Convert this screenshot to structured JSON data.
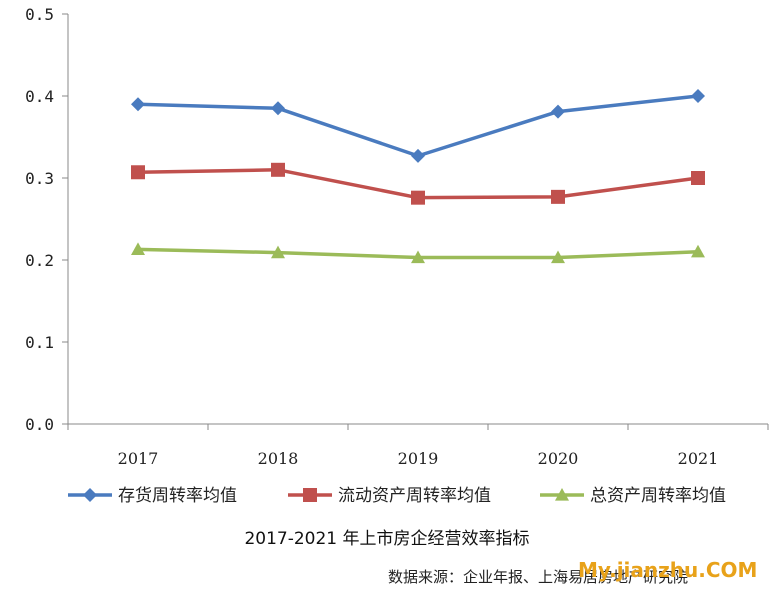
{
  "chart_data": {
    "type": "line",
    "title": "2017-2021 年上市房企经营效率指标",
    "categories": [
      "2017",
      "2018",
      "2019",
      "2020",
      "2021"
    ],
    "ylim": [
      0,
      0.5
    ],
    "yticks": [
      "0.0",
      "0.1",
      "0.2",
      "0.3",
      "0.4",
      "0.5"
    ],
    "grid": false,
    "legend_position": "bottom",
    "series": [
      {
        "name": "存货周转率均值",
        "color": "#4a7bbf",
        "marker": "diamond",
        "values": [
          0.39,
          0.385,
          0.327,
          0.381,
          0.4
        ]
      },
      {
        "name": "流动资产周转率均值",
        "color": "#c0504d",
        "marker": "square",
        "values": [
          0.307,
          0.31,
          0.276,
          0.277,
          0.3
        ]
      },
      {
        "name": "总资产周转率均值",
        "color": "#9bbb59",
        "marker": "triangle",
        "values": [
          0.213,
          0.209,
          0.203,
          0.203,
          0.21
        ]
      }
    ]
  },
  "source_text": "数据来源：企业年报、上海易居房地产研究院",
  "watermark": "My.jianzhu.COM"
}
